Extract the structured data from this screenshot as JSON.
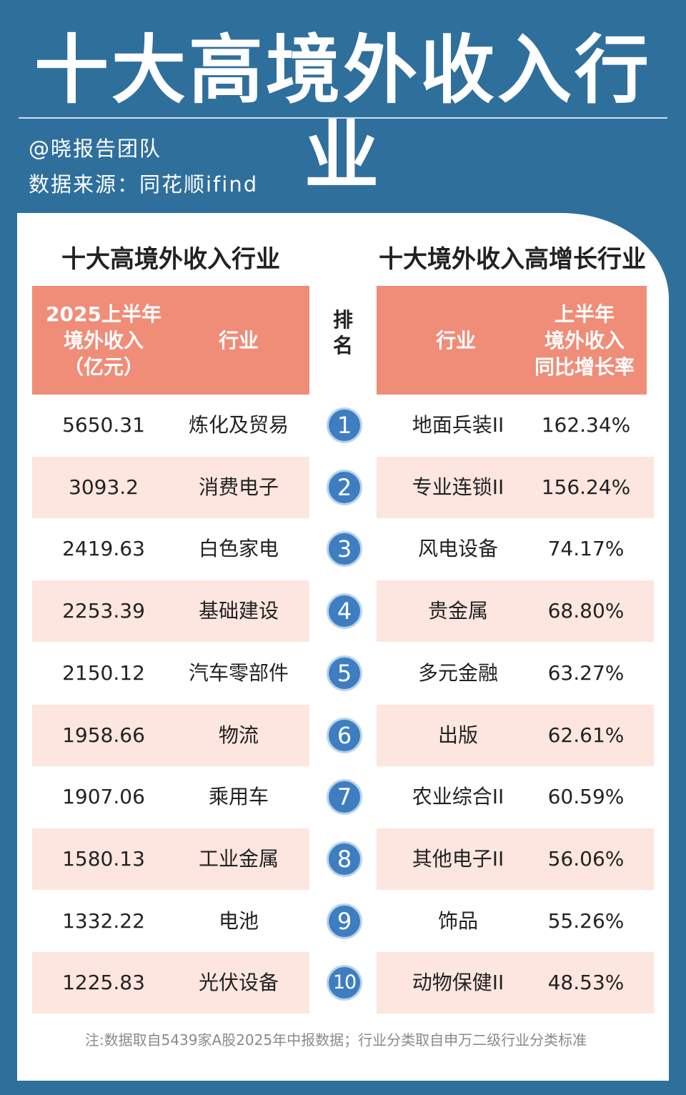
{
  "title": "十大高境外收入行业",
  "author": "@晓报告团队",
  "source": "数据来源：同花顺ifind",
  "left_table": {
    "heading": "十大高境外收入行业",
    "col_value_lines": [
      "2025上半年",
      "境外收入",
      "（亿元）"
    ],
    "col_industry": "行业"
  },
  "rank_header_lines": [
    "排",
    "名"
  ],
  "right_table": {
    "heading": "十大境外收入高增长行业",
    "col_industry": "行业",
    "col_growth_lines": [
      "上半年",
      "境外收入",
      "同比增长率"
    ]
  },
  "rows": [
    {
      "rank": "1",
      "value": "5650.31",
      "industry": "炼化及贸易",
      "growth_industry": "地面兵装II",
      "growth": "162.34%"
    },
    {
      "rank": "2",
      "value": "3093.2",
      "industry": "消费电子",
      "growth_industry": "专业连锁II",
      "growth": "156.24%"
    },
    {
      "rank": "3",
      "value": "2419.63",
      "industry": "白色家电",
      "growth_industry": "风电设备",
      "growth": "74.17%"
    },
    {
      "rank": "4",
      "value": "2253.39",
      "industry": "基础建设",
      "growth_industry": "贵金属",
      "growth": "68.80%"
    },
    {
      "rank": "5",
      "value": "2150.12",
      "industry": "汽车零部件",
      "growth_industry": "多元金融",
      "growth": "63.27%"
    },
    {
      "rank": "6",
      "value": "1958.66",
      "industry": "物流",
      "growth_industry": "出版",
      "growth": "62.61%"
    },
    {
      "rank": "7",
      "value": "1907.06",
      "industry": "乘用车",
      "growth_industry": "农业综合II",
      "growth": "60.59%"
    },
    {
      "rank": "8",
      "value": "1580.13",
      "industry": "工业金属",
      "growth_industry": "其他电子II",
      "growth": "56.06%"
    },
    {
      "rank": "9",
      "value": "1332.22",
      "industry": "电池",
      "growth_industry": "饰品",
      "growth": "55.26%"
    },
    {
      "rank": "10",
      "value": "1225.83",
      "industry": "光伏设备",
      "growth_industry": "动物保健II",
      "growth": "48.53%"
    }
  ],
  "footnote": "注:数据取自5439家A股2025年中报数据；行业分类取自申万二级行业分类标准",
  "colors": {
    "background": "#2f6f9c",
    "header_fill": "#ef8d78",
    "row_band": "#fde6df",
    "rank_badge": "#3e7ec0"
  }
}
